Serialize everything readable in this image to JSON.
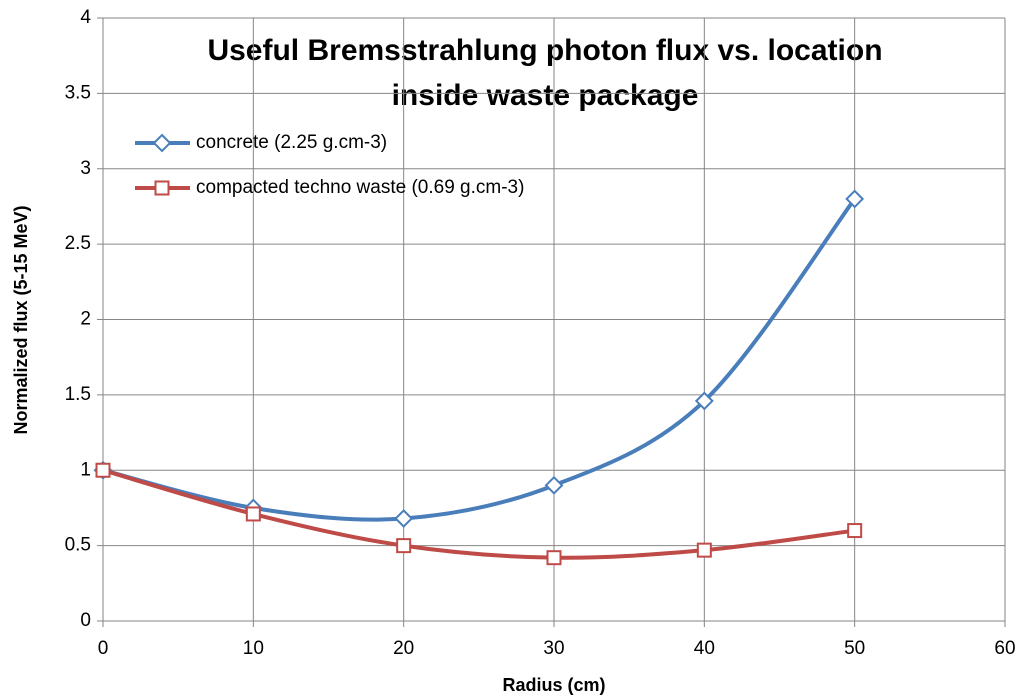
{
  "chart_data": {
    "type": "line",
    "title": [
      "Useful Bremsstrahlung photon flux vs. location",
      "inside waste package"
    ],
    "x_label": "Radius (cm)",
    "y_label": "Normalized flux (5-15 MeV)",
    "x": [
      0,
      10,
      20,
      30,
      40,
      50
    ],
    "series": [
      {
        "name": "concrete (2.25 g.cm-3)",
        "color": "#4a7ebb",
        "marker": "diamond",
        "values": [
          1.0,
          0.75,
          0.68,
          0.9,
          1.46,
          2.8
        ]
      },
      {
        "name": "compacted techno waste (0.69 g.cm-3)",
        "color": "#be4b48",
        "marker": "square",
        "values": [
          1.0,
          0.71,
          0.5,
          0.42,
          0.47,
          0.6
        ]
      }
    ],
    "xlim": [
      0,
      60
    ],
    "xticks": [
      0,
      10,
      20,
      30,
      40,
      50,
      60
    ],
    "ylim": [
      0,
      4
    ],
    "yticks": [
      0,
      0.5,
      1,
      1.5,
      2,
      2.5,
      3,
      3.5,
      4
    ],
    "grid": true,
    "smooth": true,
    "legend": "top-left"
  }
}
